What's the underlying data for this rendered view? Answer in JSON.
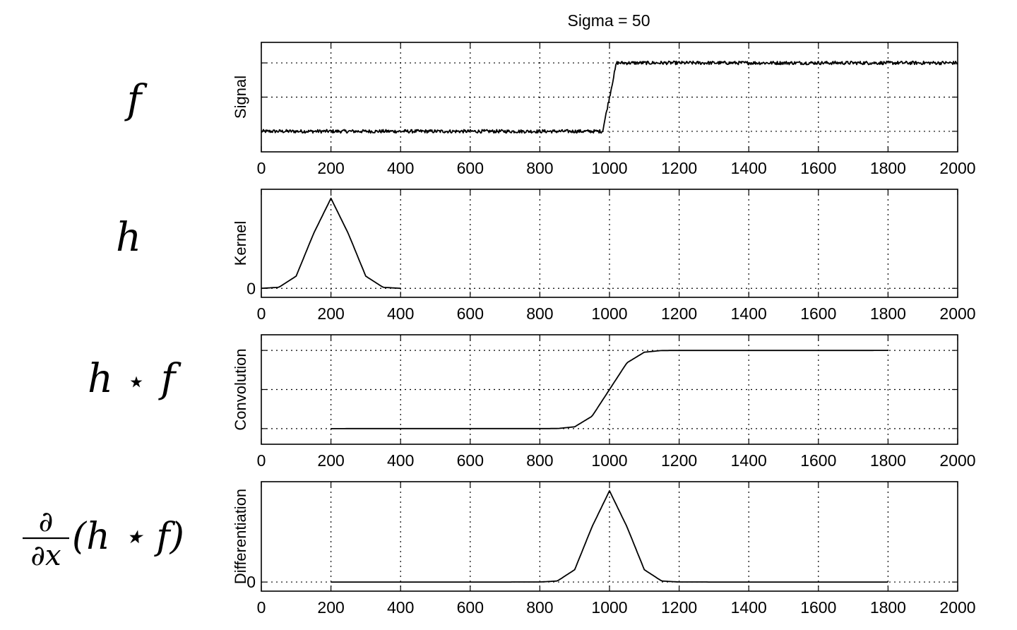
{
  "chart_data": {
    "type": "line",
    "title": "Sigma = 50",
    "panels": [
      {
        "id": "signal",
        "math_label": "f",
        "ylabel": "Signal",
        "xlim": [
          0,
          2000
        ],
        "ylim": [
          -0.3,
          1.3
        ],
        "yticks": [
          0,
          0.5,
          1
        ],
        "ytick_labels": [
          "",
          "",
          ""
        ],
        "xticks": [
          0,
          200,
          400,
          600,
          800,
          1000,
          1200,
          1400,
          1600,
          1800,
          2000
        ],
        "grid": true,
        "series": [
          {
            "x": [
              0,
              980,
              1020,
              2000
            ],
            "y": [
              0,
              0,
              1,
              1
            ],
            "noise": 0.025
          }
        ]
      },
      {
        "id": "kernel",
        "math_label": "h",
        "ylabel": "Kernel",
        "xlim": [
          0,
          2000
        ],
        "ylim": [
          -0.1,
          1.1
        ],
        "yticks": [
          0
        ],
        "ytick_labels": [
          "0"
        ],
        "xticks": [
          0,
          200,
          400,
          600,
          800,
          1000,
          1200,
          1400,
          1600,
          1800,
          2000
        ],
        "grid": true,
        "series": [
          {
            "x": [
              0,
              50,
              100,
              150,
              200,
              250,
              300,
              350,
              400
            ],
            "y": [
              0.0003,
              0.011,
              0.135,
              0.607,
              1,
              0.607,
              0.135,
              0.011,
              0.0003
            ]
          }
        ]
      },
      {
        "id": "convolution",
        "math_label_parts": [
          "h",
          "⋆",
          "f"
        ],
        "ylabel": "Convolution",
        "xlim": [
          0,
          2000
        ],
        "ylim": [
          -0.2,
          1.2
        ],
        "yticks": [
          0,
          0.5,
          1
        ],
        "ytick_labels": [
          "",
          "",
          ""
        ],
        "xticks": [
          0,
          200,
          400,
          600,
          800,
          1000,
          1200,
          1400,
          1600,
          1800,
          2000
        ],
        "grid": true,
        "series": [
          {
            "x": [
              200,
              850,
              900,
              950,
              1000,
              1050,
              1100,
              1150,
              1800
            ],
            "y": [
              0,
              0.001,
              0.023,
              0.159,
              0.5,
              0.841,
              0.977,
              0.999,
              1
            ]
          }
        ]
      },
      {
        "id": "differentiation",
        "math_label_parts": [
          "∂",
          "∂x",
          "(h ⋆ f)"
        ],
        "ylabel": "Differentiation",
        "xlim": [
          0,
          2000
        ],
        "ylim": [
          -0.1,
          1.1
        ],
        "yticks": [
          0
        ],
        "ytick_labels": [
          "0"
        ],
        "xticks": [
          0,
          200,
          400,
          600,
          800,
          1000,
          1200,
          1400,
          1600,
          1800,
          2000
        ],
        "grid": true,
        "series": [
          {
            "x": [
              200,
              800,
              850,
              900,
              950,
              1000,
              1050,
              1100,
              1150,
              1200,
              1800
            ],
            "y": [
              0,
              0.0003,
              0.011,
              0.135,
              0.607,
              1,
              0.607,
              0.135,
              0.011,
              0.0003,
              0
            ]
          }
        ]
      }
    ]
  }
}
